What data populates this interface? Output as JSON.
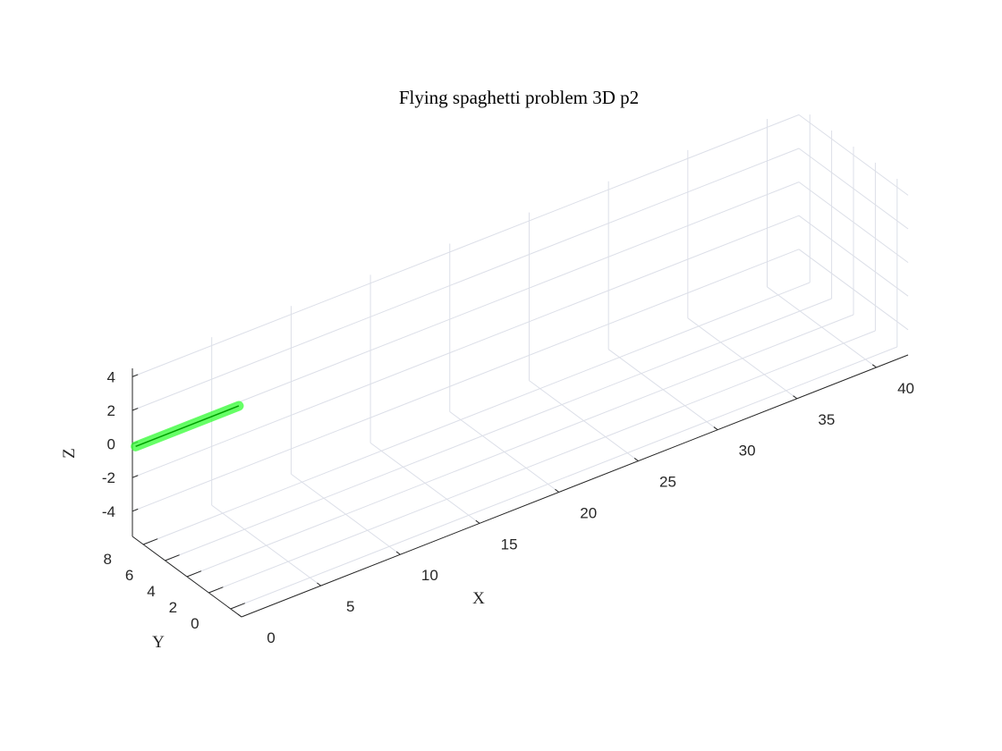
{
  "chart_data": {
    "type": "line",
    "title": "Flying spaghetti problem 3D p2",
    "xlabel": "X",
    "ylabel": "Y",
    "zlabel": "Z",
    "xlim": [
      0,
      42
    ],
    "ylim": [
      -1,
      9
    ],
    "zlim": [
      -5.5,
      4.5
    ],
    "xticks": [
      0,
      5,
      10,
      15,
      20,
      25,
      30,
      35,
      40
    ],
    "yticks": [
      0,
      2,
      4,
      6,
      8
    ],
    "zticks": [
      -4,
      -2,
      0,
      2,
      4
    ],
    "grid": true,
    "series": [
      {
        "x": [
          0,
          6.5
        ],
        "y": [
          8.7,
          8.7
        ],
        "z": [
          0,
          0
        ],
        "color": "#00a000",
        "highlight_color": "#33ff33"
      }
    ]
  }
}
